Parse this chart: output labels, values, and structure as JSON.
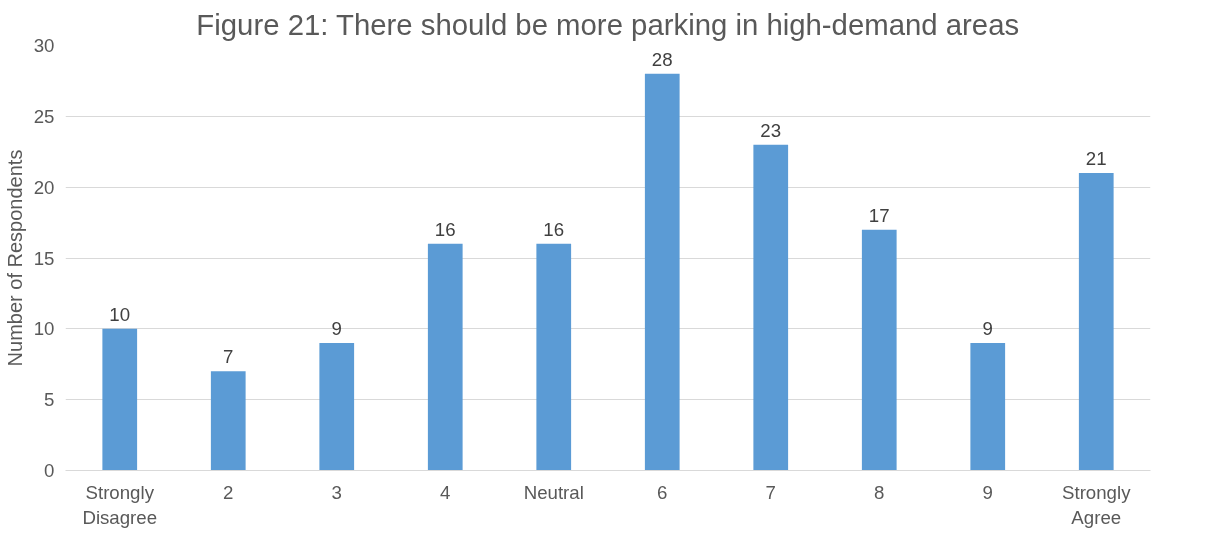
{
  "chart_data": {
    "type": "bar",
    "title": "Figure 21: There should be more parking in high-demand areas",
    "ylabel": "Number of Respondents",
    "categories": [
      "Strongly Disagree",
      "2",
      "3",
      "4",
      "Neutral",
      "6",
      "7",
      "8",
      "9",
      "Strongly Agree"
    ],
    "values": [
      10,
      7,
      9,
      16,
      16,
      28,
      23,
      17,
      9,
      21
    ],
    "color": "#5b9bd5",
    "ylim": [
      0,
      30
    ],
    "yticks": [
      0,
      5,
      10,
      15,
      20,
      25,
      30
    ],
    "grid": "y",
    "data_labels": true
  }
}
